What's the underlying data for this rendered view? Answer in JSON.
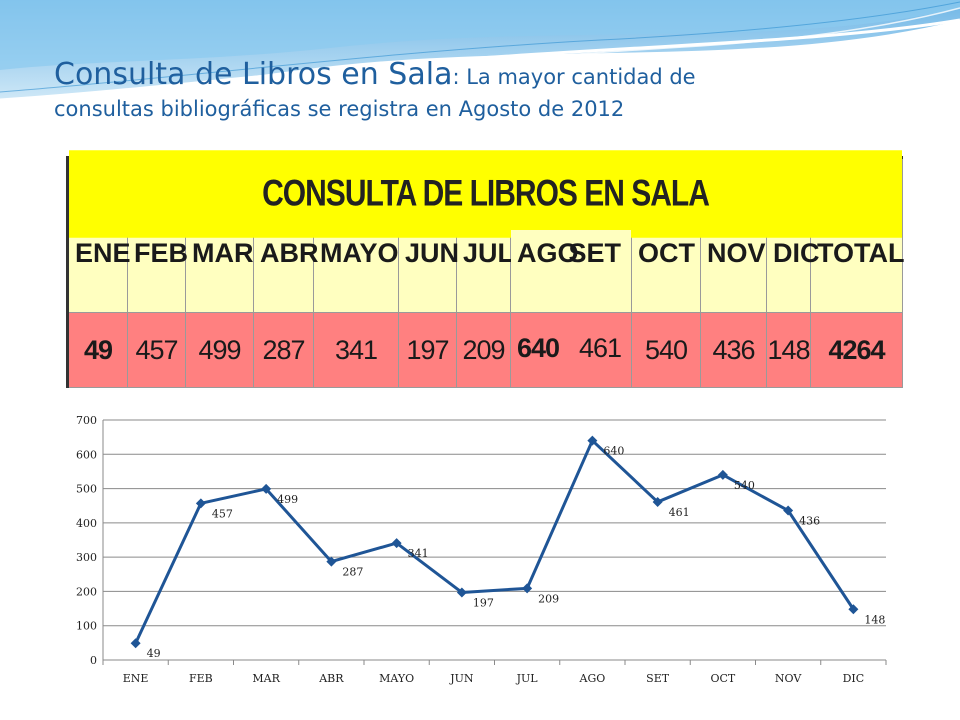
{
  "title": {
    "main": "Consulta de Libros en Sala",
    "sub": ": La mayor cantidad de",
    "line2": "consultas bibliográficas se registra en Agosto de 2012"
  },
  "table": {
    "title": "CONSULTA DE LIBROS EN SALA",
    "headers": [
      "ENE",
      "FEB",
      "MAR",
      "ABR",
      "MAYO",
      "JUN",
      "JUL",
      "AGO",
      "SET",
      "OCT",
      "NOV",
      "DIC",
      "TOTAL"
    ],
    "values": [
      "49",
      "457",
      "499",
      "287",
      "341",
      "197",
      "209",
      "640",
      "461",
      "540",
      "436",
      "148",
      "4264"
    ]
  },
  "chart_data": {
    "type": "line",
    "categories": [
      "ENE",
      "FEB",
      "MAR",
      "ABR",
      "MAYO",
      "JUN",
      "JUL",
      "AGO",
      "SET",
      "OCT",
      "NOV",
      "DIC"
    ],
    "series": [
      {
        "name": "",
        "values": [
          49,
          457,
          499,
          287,
          341,
          197,
          209,
          640,
          461,
          540,
          436,
          148
        ]
      }
    ],
    "yticks": [
      0,
      100,
      200,
      300,
      400,
      500,
      600,
      700
    ],
    "ylim": [
      0,
      700
    ],
    "grid": true,
    "legend": "none",
    "line_color": "#1f5596"
  }
}
